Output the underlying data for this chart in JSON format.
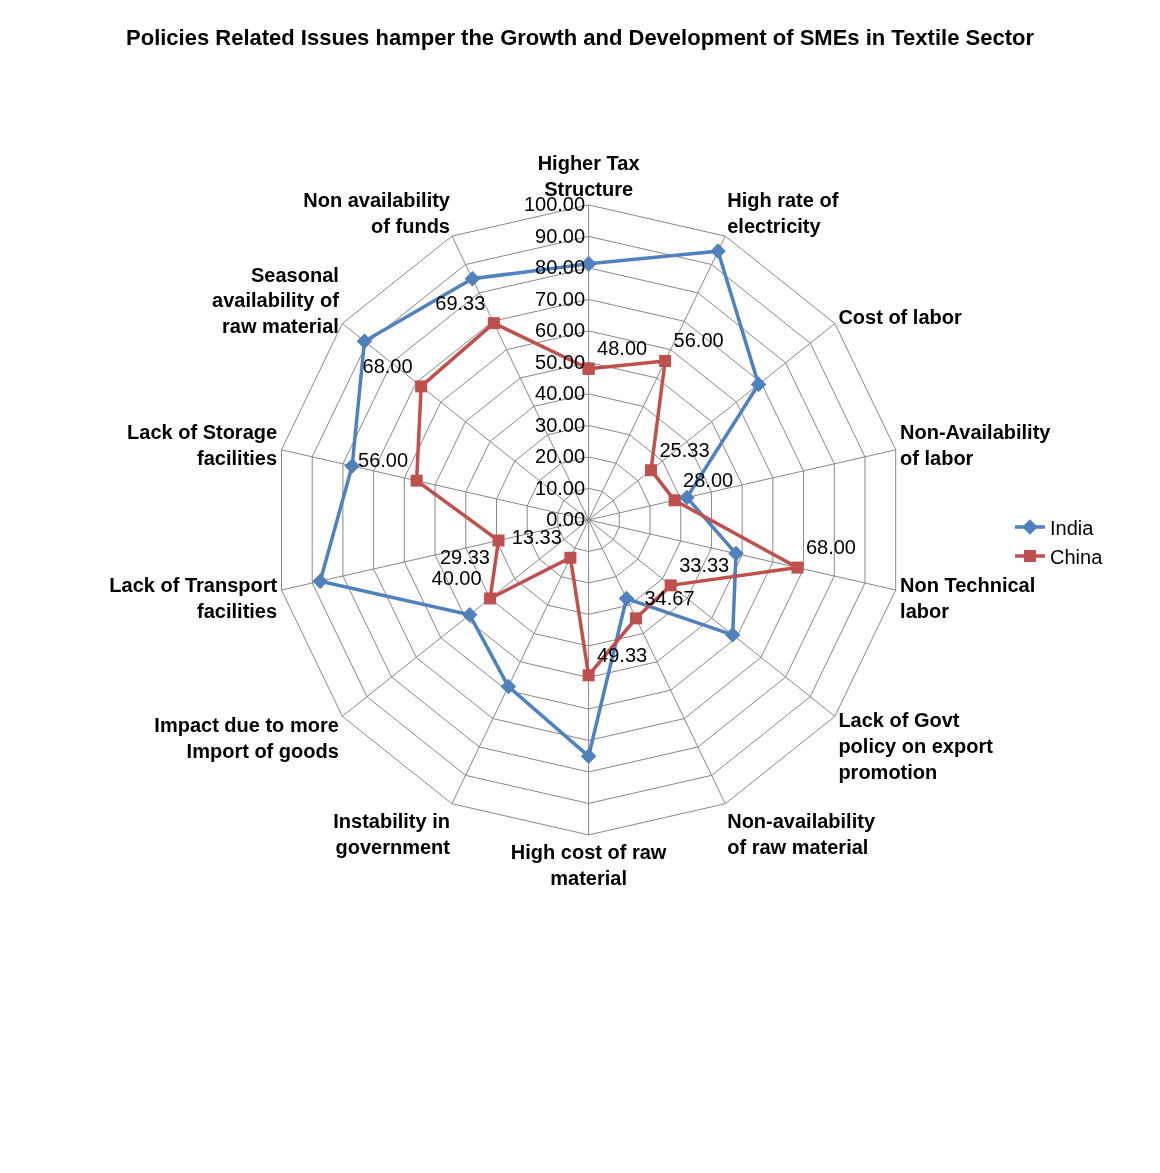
{
  "chart_data": {
    "type": "radar",
    "title": "Policies Related Issues hamper the Growth and Development of SMEs in Textile Sector",
    "categories": [
      "Higher Tax Structure",
      "High rate of electricity",
      "Cost of labor",
      "Non-Availability of labor",
      "Non Technical labor",
      "Lack of Govt policy on export promotion",
      "Non-availability of raw material",
      "High cost of raw material",
      "Instability in government",
      "Impact due to more Import of goods",
      "Lack of Transport facilities",
      "Lack of Storage facilities",
      "Seasonal availability of raw material",
      "Non availability of funds"
    ],
    "series": [
      {
        "name": "India",
        "color": "#4f81bd",
        "marker": "diamond",
        "values": [
          81.3,
          94.7,
          69,
          32,
          48,
          58.5,
          27.7,
          75,
          58.7,
          48.3,
          87.4,
          77,
          91,
          85
        ]
      },
      {
        "name": "China",
        "color": "#c0504d",
        "marker": "square",
        "values": [
          48.0,
          56.0,
          25.33,
          28.0,
          68.0,
          33.33,
          34.67,
          49.33,
          13.33,
          40.0,
          29.33,
          56.0,
          68.0,
          69.33
        ],
        "value_labels": [
          "48.00",
          "56.00",
          "25.33",
          "28.00",
          "68.00",
          "33.33",
          "34.67",
          "49.33",
          "13.33",
          "40.00",
          "29.33",
          "56.00",
          "68.00",
          "69.33"
        ]
      }
    ],
    "ylim": [
      0,
      100
    ],
    "yticks": [
      {
        "value": 0,
        "label": "0.00"
      },
      {
        "value": 10,
        "label": "10.00"
      },
      {
        "value": 20,
        "label": "20.00"
      },
      {
        "value": 30,
        "label": "30.00"
      },
      {
        "value": 40,
        "label": "40.00"
      },
      {
        "value": 50,
        "label": "50.00"
      },
      {
        "value": 60,
        "label": "60.00"
      },
      {
        "value": 70,
        "label": "70.00"
      },
      {
        "value": 80,
        "label": "80.00"
      },
      {
        "value": 90,
        "label": "90.00"
      },
      {
        "value": 100,
        "label": "100.00"
      }
    ],
    "grid": true,
    "legend": "right"
  }
}
